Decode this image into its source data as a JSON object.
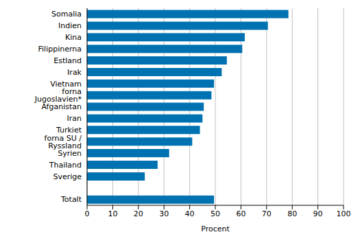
{
  "chart_data": {
    "type": "bar",
    "orientation": "horizontal",
    "categories": [
      "Somalia",
      "Indien",
      "Kina",
      "Filippinerna",
      "Estland",
      "Irak",
      "Vietnam",
      "forna Jugoslavien*",
      "Afganistan",
      "Iran",
      "Turkiet",
      "forna SU / Ryssland",
      "Syrien",
      "Thailand",
      "Sverige",
      null,
      "Totalt"
    ],
    "values": [
      78.5,
      70.5,
      61.5,
      60.5,
      54.5,
      52.5,
      49.5,
      48.5,
      45.5,
      45,
      44,
      41,
      32,
      27.5,
      22.5,
      null,
      49.5
    ],
    "color": "#0072b2",
    "xlabel": "Procent",
    "xlim": [
      0,
      100
    ],
    "xticks": [
      0,
      10,
      20,
      30,
      40,
      50,
      60,
      70,
      80,
      90,
      100
    ],
    "grid": true
  }
}
